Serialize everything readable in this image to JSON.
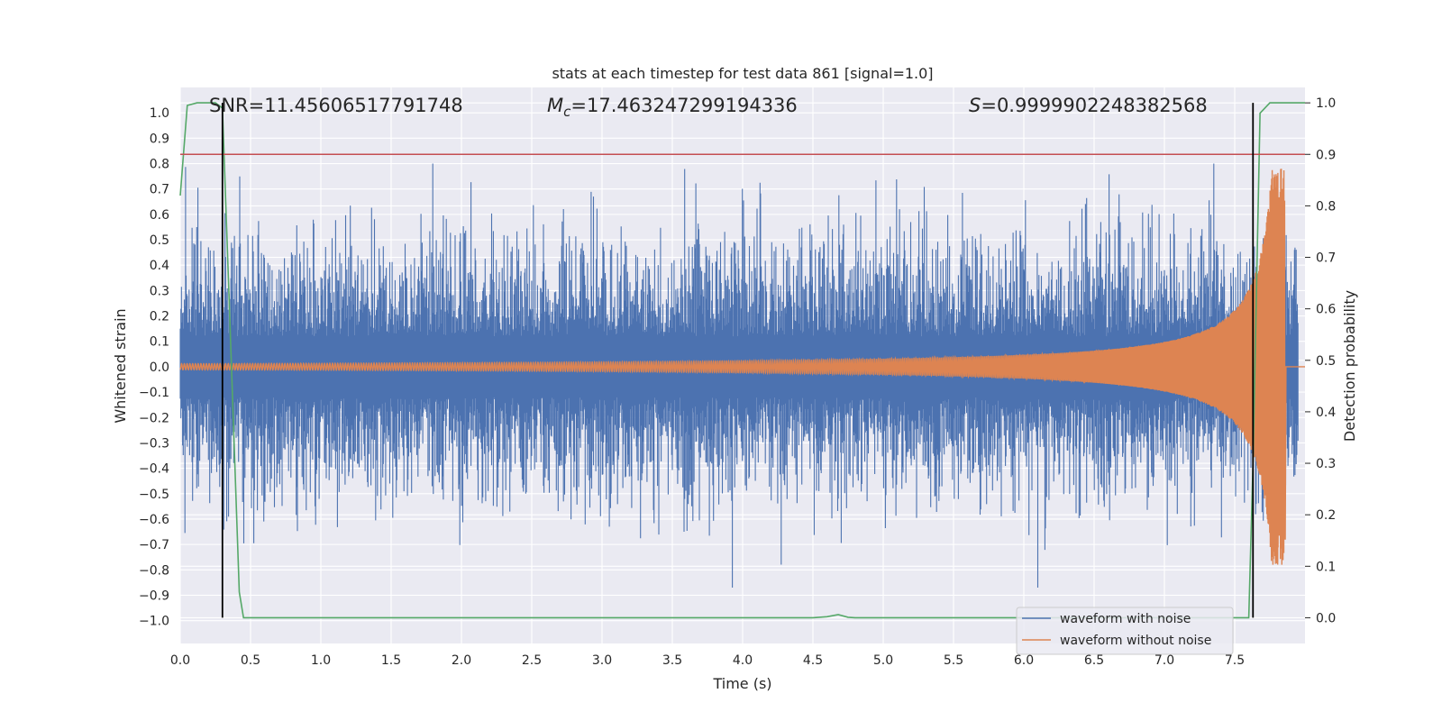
{
  "chart_data": {
    "type": "line",
    "title": "stats at each timestep for test data 861 [signal=1.0]",
    "xlabel": "Time (s)",
    "ylabel": "Whitened strain",
    "y2label": "Detection probability",
    "xlim": [
      0.0,
      8.0
    ],
    "ylim": [
      -1.09,
      1.1
    ],
    "y2lim": [
      -0.05,
      1.03
    ],
    "xticks": [
      "0.0",
      "0.5",
      "1.0",
      "1.5",
      "2.0",
      "2.5",
      "3.0",
      "3.5",
      "4.0",
      "4.5",
      "5.0",
      "5.5",
      "6.0",
      "6.5",
      "7.0",
      "7.5"
    ],
    "yticks": [
      "1.0",
      "0.9",
      "0.8",
      "0.7",
      "0.6",
      "0.5",
      "0.4",
      "0.3",
      "0.2",
      "0.1",
      "0.0",
      "-0.1",
      "-0.2",
      "-0.3",
      "-0.4",
      "-0.5",
      "-0.6",
      "-0.7",
      "-0.8",
      "-0.9",
      "-1.0"
    ],
    "y2ticks": [
      "1.0",
      "0.9",
      "0.8",
      "0.7",
      "0.6",
      "0.5",
      "0.4",
      "0.3",
      "0.2",
      "0.1",
      "0.0"
    ],
    "annotations": {
      "snr": "SNR=11.45606517791748",
      "mc_symbol": "M",
      "mc_sub": "c",
      "mc_value": "=17.463247299194336",
      "s_symbol": "S",
      "s_value": "=0.9999902248382568"
    },
    "threshold": {
      "value": 0.9,
      "axis": "right",
      "color": "#c44e52"
    },
    "vlines": [
      0.3,
      7.63
    ],
    "series": [
      {
        "name": "waveform with noise",
        "color": "#4c72b0",
        "description": "noisy whitened strain, amplitude mostly within ±0.6, peaks near ±0.8"
      },
      {
        "name": "waveform without noise",
        "color": "#dd8452",
        "description": "chirp signal growing from ±0.01 to about ±0.75, merging near t=7.85 s"
      },
      {
        "name": "detection probability",
        "color": "#55a868",
        "axis": "right",
        "x": [
          0.0,
          0.05,
          0.12,
          0.25,
          0.3,
          0.35,
          0.42,
          0.45,
          0.5,
          4.5,
          4.6,
          4.68,
          4.75,
          4.8,
          7.6,
          7.63,
          7.68,
          7.75,
          8.0
        ],
        "y": [
          0.82,
          0.995,
          1.0,
          1.0,
          0.99,
          0.6,
          0.05,
          0.0,
          0.0,
          0.0,
          0.002,
          0.006,
          0.001,
          0.0,
          0.0,
          0.3,
          0.98,
          1.0,
          1.0
        ]
      }
    ],
    "legend": {
      "location": "lower-right",
      "entries": [
        "waveform with noise",
        "waveform without noise"
      ]
    }
  }
}
